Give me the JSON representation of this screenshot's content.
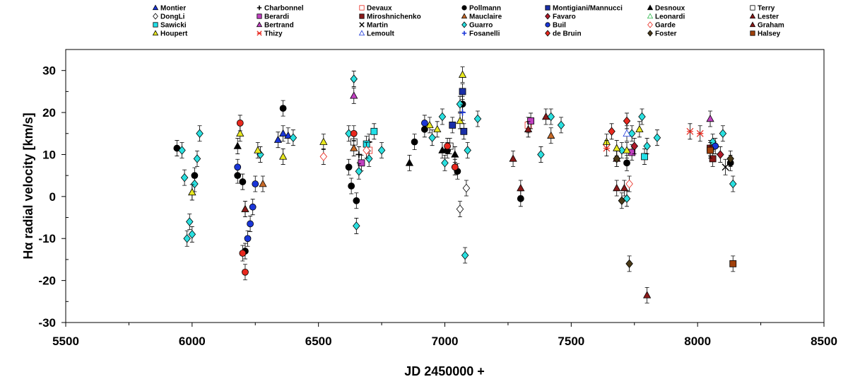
{
  "chart_data": {
    "type": "scatter",
    "xlabel": "JD 2450000 +",
    "ylabel": "Hα  radial velocity [km/s]",
    "xlim": [
      5500,
      8500
    ],
    "ylim": [
      -30,
      35
    ],
    "x_ticks": [
      5500,
      6000,
      6500,
      7000,
      7500,
      8000,
      8500
    ],
    "y_ticks": [
      -30,
      -20,
      -10,
      0,
      10,
      20,
      30
    ],
    "grid": false,
    "legend_position": "top",
    "series": [
      {
        "name": "Montier",
        "marker": "triangle",
        "color": "#1a36d8",
        "fill": true,
        "x": [
          6340,
          6360,
          6380
        ],
        "y": [
          13.5,
          15,
          14.5
        ]
      },
      {
        "name": "Charbonnel",
        "marker": "plus",
        "color": "#000000",
        "fill": true,
        "x": [
          6660,
          6700
        ],
        "y": [
          10,
          13
        ]
      },
      {
        "name": "Devaux",
        "marker": "square",
        "color": "#e8281e",
        "fill": false,
        "x": [
          6700,
          7330
        ],
        "y": [
          11,
          17
        ]
      },
      {
        "name": "Pollmann",
        "marker": "circle",
        "color": "#000000",
        "fill": true,
        "x": [
          5940,
          6010,
          6180,
          6200,
          6210,
          6360,
          6620,
          6630,
          6650,
          6880,
          6920,
          7010,
          7050,
          7070,
          7300,
          7720,
          8130
        ],
        "y": [
          11.5,
          5,
          5,
          3.5,
          -13,
          21,
          7,
          2.5,
          -1,
          13,
          16,
          11,
          6,
          22,
          -0.5,
          8,
          8
        ]
      },
      {
        "name": "Montigiani/Mannucci",
        "marker": "square",
        "color": "#1a2fa8",
        "fill": true,
        "x": [
          7030,
          7070,
          7075
        ],
        "y": [
          17,
          25,
          15.5
        ]
      },
      {
        "name": "Desnoux",
        "marker": "triangle",
        "color": "#000000",
        "fill": true,
        "x": [
          6000,
          6180,
          6860,
          6990,
          7040
        ],
        "y": [
          1,
          12,
          8,
          11,
          10
        ]
      },
      {
        "name": "Terry",
        "marker": "square",
        "color": "#000000",
        "fill": false,
        "x": [
          6640,
          7020
        ],
        "y": [
          13,
          12
        ]
      },
      {
        "name": "DongLi",
        "marker": "diamond",
        "color": "#000000",
        "fill": false,
        "x": [
          7060,
          7085
        ],
        "y": [
          -3,
          2
        ]
      },
      {
        "name": "Berardi",
        "marker": "square",
        "color": "#c040c0",
        "fill": true,
        "x": [
          6670,
          7340,
          7740
        ],
        "y": [
          8,
          18,
          10.5
        ]
      },
      {
        "name": "Miroshnichenko",
        "marker": "square",
        "color": "#8b1a1a",
        "fill": true,
        "x": [
          8050,
          8060
        ],
        "y": [
          11.5,
          9
        ]
      },
      {
        "name": "Mauclaire",
        "marker": "triangle",
        "color": "#c86a28",
        "fill": true,
        "x": [
          6280,
          6640,
          7420
        ],
        "y": [
          3,
          11.5,
          14.5
        ]
      },
      {
        "name": "Favaro",
        "marker": "diamond",
        "color": "#b01a2a",
        "fill": true,
        "x": [
          7750,
          8090
        ],
        "y": [
          12,
          10
        ]
      },
      {
        "name": "Leonardi",
        "marker": "triangle",
        "color": "#2ab84a",
        "fill": false,
        "x": [
          6210
        ],
        "y": [
          -3
        ]
      },
      {
        "name": "Lester",
        "marker": "triangle",
        "color": "#8b1a1a",
        "fill": true,
        "x": [
          6210,
          7270,
          7300,
          7330,
          7400,
          7680,
          7800
        ],
        "y": [
          -3,
          9,
          2,
          16,
          19,
          2,
          -23.5
        ]
      },
      {
        "name": "Sawicki",
        "marker": "square",
        "color": "#22e0e8",
        "fill": true,
        "x": [
          6690,
          6720,
          7790
        ],
        "y": [
          12.5,
          15.5,
          9.5
        ]
      },
      {
        "name": "Bertrand",
        "marker": "triangle",
        "color": "#c040c0",
        "fill": true,
        "x": [
          6640,
          8050
        ],
        "y": [
          24,
          18.5
        ]
      },
      {
        "name": "Martin",
        "marker": "x",
        "color": "#000000",
        "fill": true,
        "x": [
          8110
        ],
        "y": [
          7
        ]
      },
      {
        "name": "Guarro",
        "marker": "diamond",
        "color": "#2ae0e0",
        "fill": true,
        "x": [
          5960,
          5970,
          5980,
          5990,
          6000,
          6010,
          6020,
          6030,
          6270,
          6400,
          6620,
          6640,
          6650,
          6660,
          6700,
          6750,
          6950,
          6990,
          7000,
          7040,
          7060,
          7080,
          7090,
          7130,
          7380,
          7420,
          7460,
          7700,
          7720,
          7740,
          7780,
          7800,
          7840,
          8060,
          8100,
          8140
        ],
        "y": [
          11,
          4.5,
          -10,
          -6,
          -9,
          3,
          9,
          15,
          10,
          14,
          15,
          28,
          -7,
          6,
          9,
          11,
          14,
          19,
          8,
          7,
          22,
          -14,
          11,
          18.5,
          10,
          19,
          17,
          11,
          -0.5,
          15,
          19,
          12,
          14,
          13,
          15,
          3
        ]
      },
      {
        "name": "Buil",
        "marker": "circle",
        "color": "#1a36d8",
        "fill": true,
        "x": [
          6180,
          6220,
          6230,
          6240,
          6250,
          6920,
          8070
        ],
        "y": [
          7,
          -10,
          -6.5,
          -2.5,
          3,
          17.5,
          12
        ]
      },
      {
        "name": "Garde",
        "marker": "diamond",
        "color": "#e8281e",
        "fill": false,
        "x": [
          6520,
          6690,
          7730
        ],
        "y": [
          9.5,
          11,
          3
        ]
      },
      {
        "name": "Graham",
        "marker": "triangle",
        "color": "#8b1a1a",
        "fill": true,
        "x": [
          7680,
          7710
        ],
        "y": [
          9,
          2
        ]
      },
      {
        "name": "Houpert",
        "marker": "triangle",
        "color": "#e8e820",
        "fill": true,
        "x": [
          6000,
          6190,
          6260,
          6360,
          6520,
          6940,
          6970,
          7060,
          7070,
          7640,
          7680,
          7720,
          7770
        ],
        "y": [
          1,
          15,
          11,
          9.5,
          13,
          17,
          16,
          18,
          29,
          13,
          11.5,
          11,
          16
        ]
      },
      {
        "name": "Thizy",
        "marker": "asterisk",
        "color": "#e8281e",
        "fill": true,
        "x": [
          7640,
          7970,
          8010
        ],
        "y": [
          11.5,
          15.5,
          15
        ]
      },
      {
        "name": "Lemoult",
        "marker": "triangle",
        "color": "#1a36d8",
        "fill": false,
        "x": [
          7720
        ],
        "y": [
          15
        ]
      },
      {
        "name": "Fosanelli",
        "marker": "plus",
        "color": "#1a36d8",
        "fill": true,
        "x": [
          7070
        ],
        "y": [
          20
        ]
      },
      {
        "name": "de Bruin",
        "marker": "diamond",
        "color": "#e8281e",
        "fill": true,
        "x": [
          7660,
          7720
        ],
        "y": [
          15.5,
          18
        ]
      },
      {
        "name": "Foster",
        "marker": "diamond",
        "color": "#4a3a18",
        "fill": true,
        "x": [
          7680,
          7700,
          7730,
          8130
        ],
        "y": [
          9,
          -1,
          -16,
          9
        ]
      },
      {
        "name": "Halsey",
        "marker": "square",
        "color": "#a0400a",
        "fill": true,
        "x": [
          8050,
          8140
        ],
        "y": [
          11,
          -16
        ]
      },
      {
        "name": "",
        "marker": "circle",
        "color": "#e8281e",
        "fill": true,
        "x": [
          6190,
          6200,
          6210,
          6640,
          7010,
          7040
        ],
        "y": [
          17.5,
          -13.5,
          -18,
          15,
          12,
          7
        ]
      }
    ]
  }
}
